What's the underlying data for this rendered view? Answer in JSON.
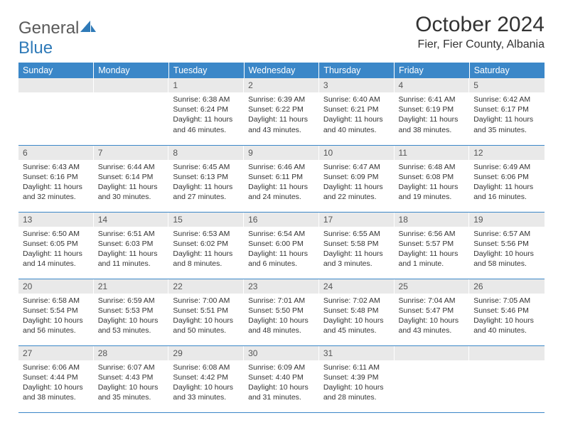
{
  "logo": {
    "word1": "General",
    "word2": "Blue"
  },
  "title": "October 2024",
  "location": "Fier, Fier County, Albania",
  "colors": {
    "header_bg": "#3b87c8",
    "header_text": "#ffffff",
    "daynum_bg": "#e9e9e9",
    "daynum_text": "#555555",
    "border": "#3b87c8",
    "logo_gray": "#5a5a5a",
    "logo_blue": "#2f7ab8"
  },
  "fonts": {
    "title_pt": 30,
    "location_pt": 16,
    "dayhdr_pt": 12.5,
    "cell_pt": 10.5
  },
  "weekdays": [
    "Sunday",
    "Monday",
    "Tuesday",
    "Wednesday",
    "Thursday",
    "Friday",
    "Saturday"
  ],
  "grid": [
    [
      {
        "blank": true
      },
      {
        "blank": true
      },
      {
        "n": "1",
        "sr": "Sunrise: 6:38 AM",
        "ss": "Sunset: 6:24 PM",
        "d1": "Daylight: 11 hours",
        "d2": "and 46 minutes."
      },
      {
        "n": "2",
        "sr": "Sunrise: 6:39 AM",
        "ss": "Sunset: 6:22 PM",
        "d1": "Daylight: 11 hours",
        "d2": "and 43 minutes."
      },
      {
        "n": "3",
        "sr": "Sunrise: 6:40 AM",
        "ss": "Sunset: 6:21 PM",
        "d1": "Daylight: 11 hours",
        "d2": "and 40 minutes."
      },
      {
        "n": "4",
        "sr": "Sunrise: 6:41 AM",
        "ss": "Sunset: 6:19 PM",
        "d1": "Daylight: 11 hours",
        "d2": "and 38 minutes."
      },
      {
        "n": "5",
        "sr": "Sunrise: 6:42 AM",
        "ss": "Sunset: 6:17 PM",
        "d1": "Daylight: 11 hours",
        "d2": "and 35 minutes."
      }
    ],
    [
      {
        "n": "6",
        "sr": "Sunrise: 6:43 AM",
        "ss": "Sunset: 6:16 PM",
        "d1": "Daylight: 11 hours",
        "d2": "and 32 minutes."
      },
      {
        "n": "7",
        "sr": "Sunrise: 6:44 AM",
        "ss": "Sunset: 6:14 PM",
        "d1": "Daylight: 11 hours",
        "d2": "and 30 minutes."
      },
      {
        "n": "8",
        "sr": "Sunrise: 6:45 AM",
        "ss": "Sunset: 6:13 PM",
        "d1": "Daylight: 11 hours",
        "d2": "and 27 minutes."
      },
      {
        "n": "9",
        "sr": "Sunrise: 6:46 AM",
        "ss": "Sunset: 6:11 PM",
        "d1": "Daylight: 11 hours",
        "d2": "and 24 minutes."
      },
      {
        "n": "10",
        "sr": "Sunrise: 6:47 AM",
        "ss": "Sunset: 6:09 PM",
        "d1": "Daylight: 11 hours",
        "d2": "and 22 minutes."
      },
      {
        "n": "11",
        "sr": "Sunrise: 6:48 AM",
        "ss": "Sunset: 6:08 PM",
        "d1": "Daylight: 11 hours",
        "d2": "and 19 minutes."
      },
      {
        "n": "12",
        "sr": "Sunrise: 6:49 AM",
        "ss": "Sunset: 6:06 PM",
        "d1": "Daylight: 11 hours",
        "d2": "and 16 minutes."
      }
    ],
    [
      {
        "n": "13",
        "sr": "Sunrise: 6:50 AM",
        "ss": "Sunset: 6:05 PM",
        "d1": "Daylight: 11 hours",
        "d2": "and 14 minutes."
      },
      {
        "n": "14",
        "sr": "Sunrise: 6:51 AM",
        "ss": "Sunset: 6:03 PM",
        "d1": "Daylight: 11 hours",
        "d2": "and 11 minutes."
      },
      {
        "n": "15",
        "sr": "Sunrise: 6:53 AM",
        "ss": "Sunset: 6:02 PM",
        "d1": "Daylight: 11 hours",
        "d2": "and 8 minutes."
      },
      {
        "n": "16",
        "sr": "Sunrise: 6:54 AM",
        "ss": "Sunset: 6:00 PM",
        "d1": "Daylight: 11 hours",
        "d2": "and 6 minutes."
      },
      {
        "n": "17",
        "sr": "Sunrise: 6:55 AM",
        "ss": "Sunset: 5:58 PM",
        "d1": "Daylight: 11 hours",
        "d2": "and 3 minutes."
      },
      {
        "n": "18",
        "sr": "Sunrise: 6:56 AM",
        "ss": "Sunset: 5:57 PM",
        "d1": "Daylight: 11 hours",
        "d2": "and 1 minute."
      },
      {
        "n": "19",
        "sr": "Sunrise: 6:57 AM",
        "ss": "Sunset: 5:56 PM",
        "d1": "Daylight: 10 hours",
        "d2": "and 58 minutes."
      }
    ],
    [
      {
        "n": "20",
        "sr": "Sunrise: 6:58 AM",
        "ss": "Sunset: 5:54 PM",
        "d1": "Daylight: 10 hours",
        "d2": "and 56 minutes."
      },
      {
        "n": "21",
        "sr": "Sunrise: 6:59 AM",
        "ss": "Sunset: 5:53 PM",
        "d1": "Daylight: 10 hours",
        "d2": "and 53 minutes."
      },
      {
        "n": "22",
        "sr": "Sunrise: 7:00 AM",
        "ss": "Sunset: 5:51 PM",
        "d1": "Daylight: 10 hours",
        "d2": "and 50 minutes."
      },
      {
        "n": "23",
        "sr": "Sunrise: 7:01 AM",
        "ss": "Sunset: 5:50 PM",
        "d1": "Daylight: 10 hours",
        "d2": "and 48 minutes."
      },
      {
        "n": "24",
        "sr": "Sunrise: 7:02 AM",
        "ss": "Sunset: 5:48 PM",
        "d1": "Daylight: 10 hours",
        "d2": "and 45 minutes."
      },
      {
        "n": "25",
        "sr": "Sunrise: 7:04 AM",
        "ss": "Sunset: 5:47 PM",
        "d1": "Daylight: 10 hours",
        "d2": "and 43 minutes."
      },
      {
        "n": "26",
        "sr": "Sunrise: 7:05 AM",
        "ss": "Sunset: 5:46 PM",
        "d1": "Daylight: 10 hours",
        "d2": "and 40 minutes."
      }
    ],
    [
      {
        "n": "27",
        "sr": "Sunrise: 6:06 AM",
        "ss": "Sunset: 4:44 PM",
        "d1": "Daylight: 10 hours",
        "d2": "and 38 minutes."
      },
      {
        "n": "28",
        "sr": "Sunrise: 6:07 AM",
        "ss": "Sunset: 4:43 PM",
        "d1": "Daylight: 10 hours",
        "d2": "and 35 minutes."
      },
      {
        "n": "29",
        "sr": "Sunrise: 6:08 AM",
        "ss": "Sunset: 4:42 PM",
        "d1": "Daylight: 10 hours",
        "d2": "and 33 minutes."
      },
      {
        "n": "30",
        "sr": "Sunrise: 6:09 AM",
        "ss": "Sunset: 4:40 PM",
        "d1": "Daylight: 10 hours",
        "d2": "and 31 minutes."
      },
      {
        "n": "31",
        "sr": "Sunrise: 6:11 AM",
        "ss": "Sunset: 4:39 PM",
        "d1": "Daylight: 10 hours",
        "d2": "and 28 minutes."
      },
      {
        "blank": true
      },
      {
        "blank": true
      }
    ]
  ]
}
